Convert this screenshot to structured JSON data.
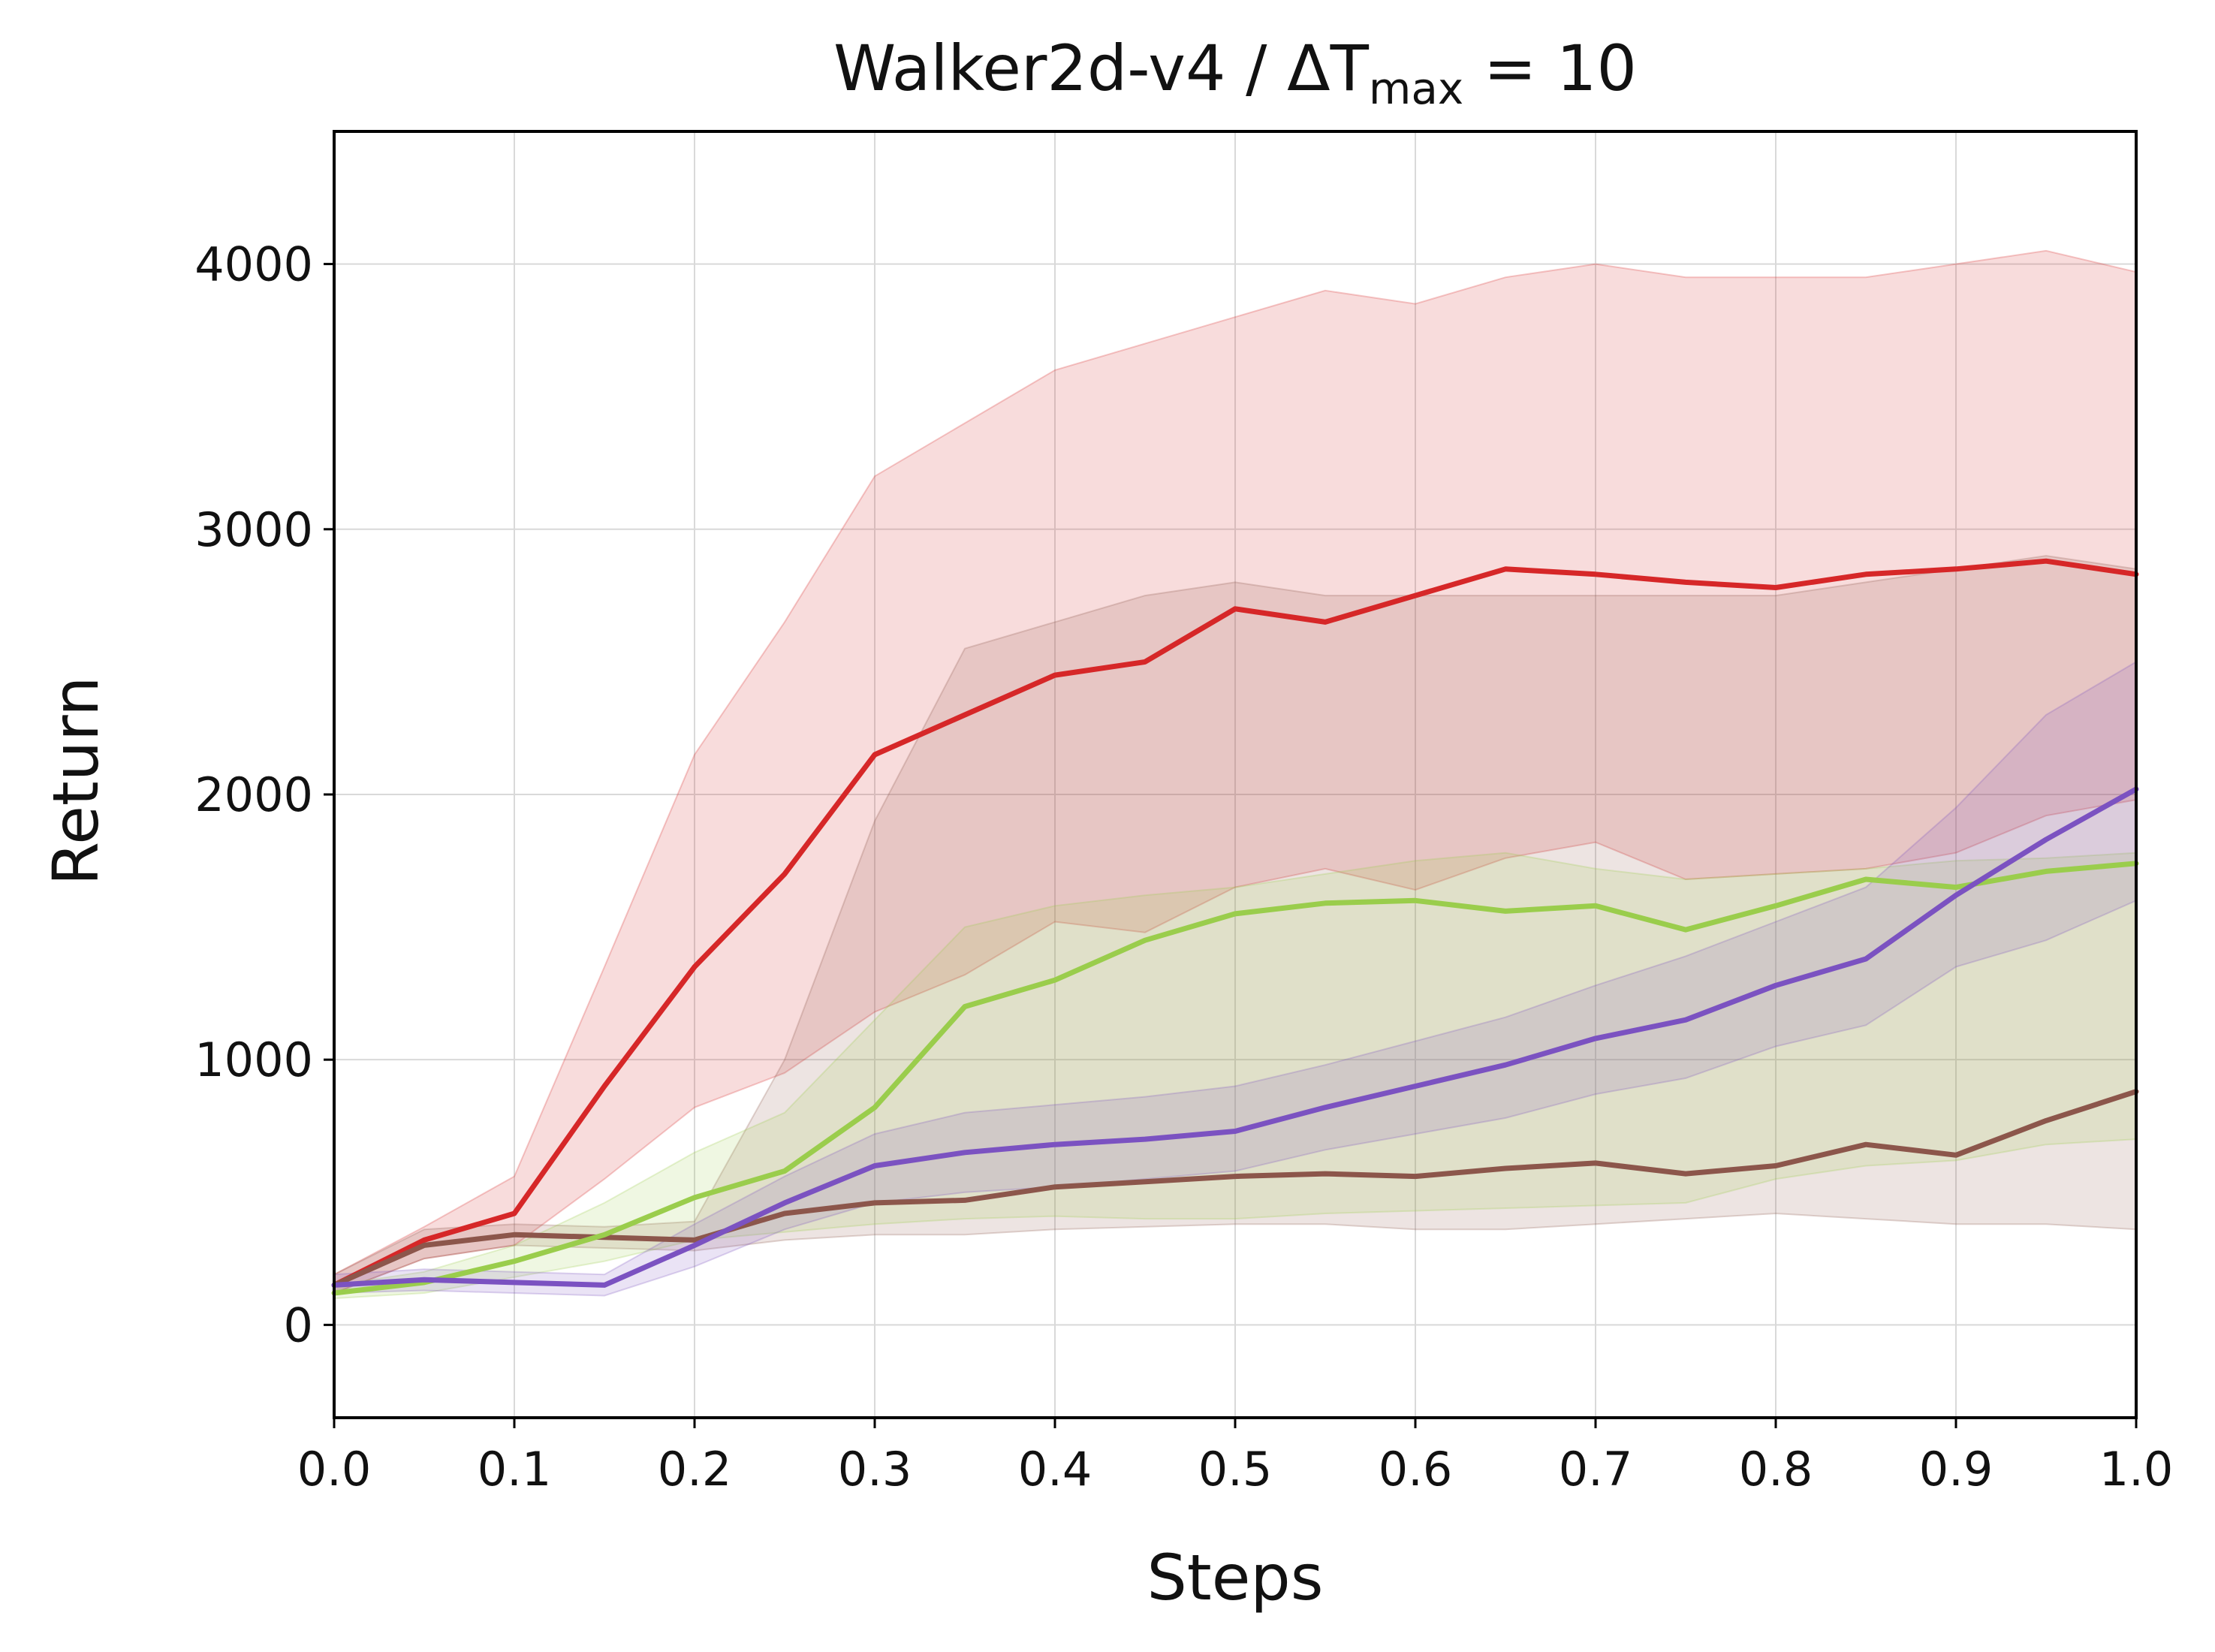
{
  "chart_data": {
    "type": "line",
    "title": "Walker2d-v4 / ΔT",
    "title_sub": "max",
    "title_tail": " = 10",
    "xlabel": "Steps",
    "ylabel": "Return",
    "xlim": [
      0.0,
      1.0
    ],
    "ylim": [
      -350,
      4500
    ],
    "xticks": [
      0.0,
      0.1,
      0.2,
      0.3,
      0.4,
      0.5,
      0.6,
      0.7,
      0.8,
      0.9,
      1.0
    ],
    "xtick_labels": [
      "0.0",
      "0.1",
      "0.2",
      "0.3",
      "0.4",
      "0.5",
      "0.6",
      "0.7",
      "0.8",
      "0.9",
      "1.0"
    ],
    "yticks": [
      0,
      1000,
      2000,
      3000,
      4000
    ],
    "ytick_labels": [
      "0",
      "1000",
      "2000",
      "3000",
      "4000"
    ],
    "grid": true,
    "legend": "none",
    "x": [
      0.0,
      0.05,
      0.1,
      0.15,
      0.2,
      0.25,
      0.3,
      0.35,
      0.4,
      0.45,
      0.5,
      0.55,
      0.6,
      0.65,
      0.7,
      0.75,
      0.8,
      0.85,
      0.9,
      0.95,
      1.0
    ],
    "series": [
      {
        "color": "#d62728",
        "values": [
          150,
          320,
          420,
          900,
          1350,
          1700,
          2150,
          2300,
          2450,
          2500,
          2700,
          2650,
          2750,
          2850,
          2830,
          2800,
          2780,
          2830,
          2850,
          2880,
          2830
        ],
        "lower": [
          120,
          250,
          300,
          550,
          820,
          950,
          1180,
          1320,
          1520,
          1480,
          1650,
          1720,
          1640,
          1760,
          1820,
          1680,
          1700,
          1720,
          1780,
          1920,
          1980
        ],
        "upper": [
          190,
          370,
          560,
          1350,
          2150,
          2650,
          3200,
          3400,
          3600,
          3700,
          3800,
          3900,
          3850,
          3950,
          4000,
          3950,
          3950,
          3950,
          4000,
          4050,
          3970
        ]
      },
      {
        "color": "#8c564b",
        "values": [
          150,
          300,
          340,
          330,
          320,
          420,
          460,
          470,
          520,
          540,
          560,
          570,
          560,
          590,
          610,
          570,
          600,
          680,
          640,
          770,
          880
        ],
        "lower": [
          120,
          250,
          300,
          290,
          280,
          320,
          340,
          340,
          360,
          370,
          380,
          380,
          360,
          360,
          380,
          400,
          420,
          400,
          380,
          380,
          360
        ],
        "upper": [
          190,
          360,
          380,
          370,
          390,
          1000,
          1900,
          2550,
          2650,
          2750,
          2800,
          2750,
          2750,
          2750,
          2750,
          2750,
          2750,
          2800,
          2850,
          2900,
          2850
        ]
      },
      {
        "color": "#9acd4c",
        "values": [
          120,
          160,
          240,
          340,
          480,
          580,
          820,
          1200,
          1300,
          1450,
          1550,
          1590,
          1600,
          1560,
          1580,
          1490,
          1580,
          1680,
          1650,
          1710,
          1740
        ],
        "lower": [
          100,
          120,
          180,
          240,
          320,
          350,
          380,
          400,
          410,
          400,
          400,
          420,
          430,
          440,
          450,
          460,
          550,
          600,
          620,
          680,
          700
        ],
        "upper": [
          150,
          200,
          300,
          460,
          650,
          800,
          1150,
          1500,
          1580,
          1620,
          1650,
          1700,
          1750,
          1780,
          1720,
          1680,
          1700,
          1720,
          1750,
          1760,
          1780
        ]
      },
      {
        "color": "#7b52c1",
        "values": [
          150,
          170,
          160,
          150,
          300,
          460,
          600,
          650,
          680,
          700,
          730,
          820,
          900,
          980,
          1080,
          1150,
          1280,
          1380,
          1620,
          1830,
          2020
        ],
        "lower": [
          120,
          130,
          120,
          110,
          220,
          360,
          460,
          500,
          520,
          550,
          580,
          660,
          720,
          780,
          870,
          930,
          1050,
          1130,
          1350,
          1450,
          1600
        ],
        "upper": [
          190,
          210,
          200,
          190,
          380,
          560,
          720,
          800,
          830,
          860,
          900,
          980,
          1070,
          1160,
          1280,
          1390,
          1520,
          1650,
          1950,
          2300,
          2500
        ]
      }
    ]
  }
}
